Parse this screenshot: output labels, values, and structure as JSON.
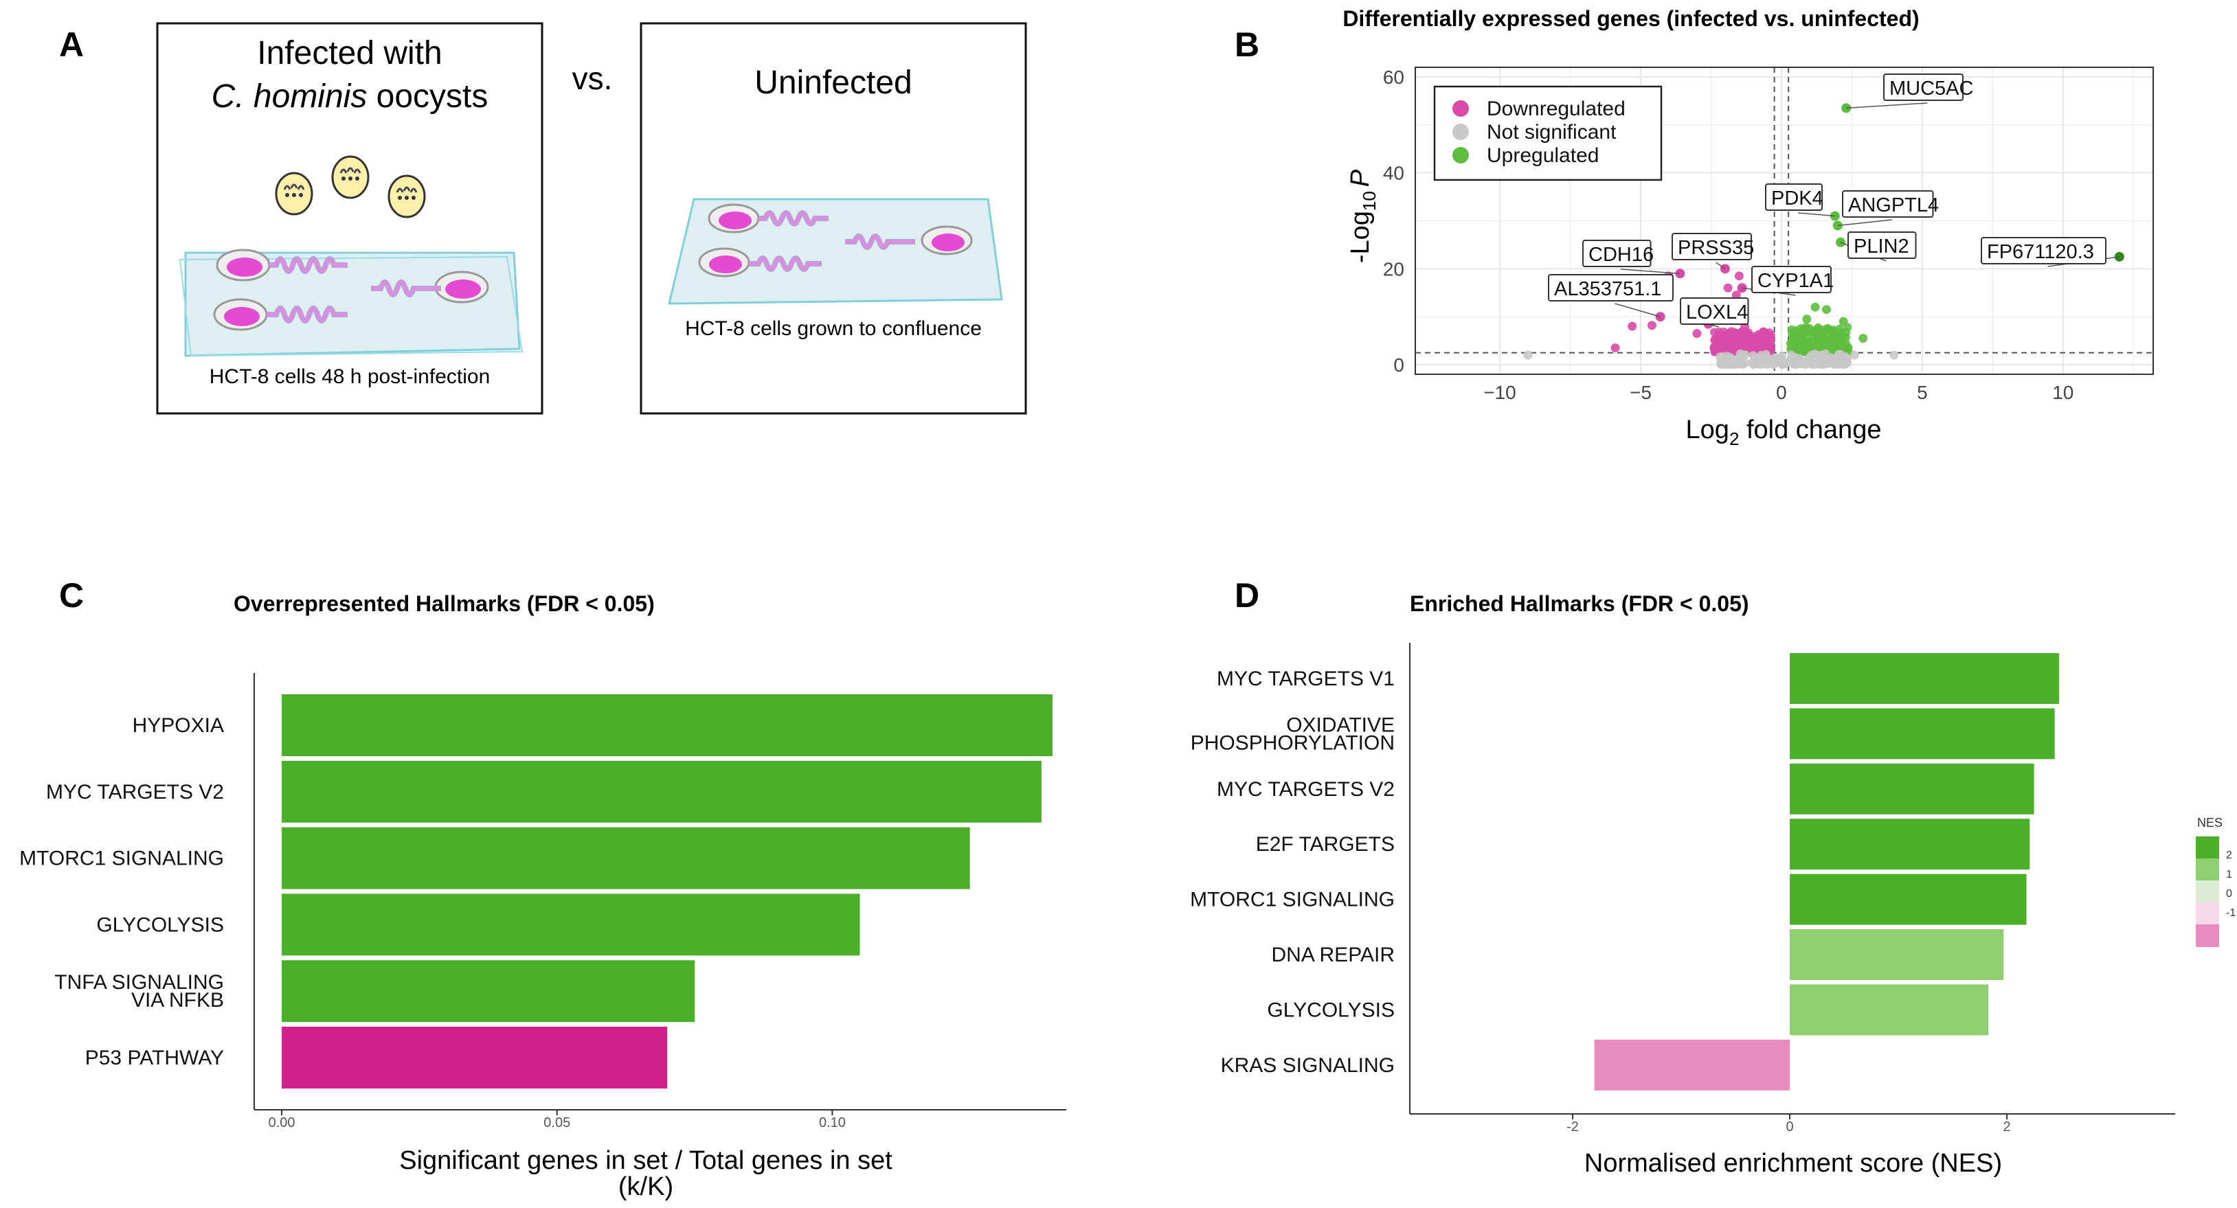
{
  "panels": {
    "a": {
      "letter": "A",
      "infected_title_line1": "Infected with",
      "infected_title_italic": "C. hominis",
      "infected_title_rest": " oocysts",
      "vs": "vs.",
      "uninfected_title": "Uninfected",
      "infected_caption": "HCT-8 cells 48 h post-infection",
      "uninfected_caption": "HCT-8 cells grown to confluence"
    },
    "b": {
      "letter": "B"
    },
    "c": {
      "letter": "C"
    },
    "d": {
      "letter": "D"
    }
  },
  "colors": {
    "green": "#4caf2a",
    "green_light": "#8fcf6f",
    "magenta": "#d0208c",
    "pink": "#e98bbf",
    "grey": "#c8c8c8",
    "dark_green": "#2e8b1e",
    "chip_pink": "#d94aa8",
    "chip_fill": "#f2a6dc"
  },
  "chart_data": [
    {
      "id": "volcano",
      "type": "scatter",
      "title": "Differentially expressed genes (infected vs. uninfected)",
      "xlabel": "Log2 fold change",
      "xlabel_main": "Log",
      "xlabel_sub": "2",
      "xlabel_rest": " fold change",
      "ylabel": "-Log10 P",
      "ylabel_main": "-Log",
      "ylabel_sub": "10",
      "ylabel_italic": "P",
      "xlim": [
        -13,
        13.2
      ],
      "ylim": [
        -2,
        62
      ],
      "xticks": [
        -10,
        -5,
        0,
        5,
        10
      ],
      "yticks": [
        0,
        20,
        40,
        60
      ],
      "grid": true,
      "legend_position": "top-left",
      "legend": [
        {
          "label": "Downregulated",
          "color": "#d94aa8"
        },
        {
          "label": "Not significant",
          "color": "#c8c8c8"
        },
        {
          "label": "Upregulated",
          "color": "#5ebd3e"
        }
      ],
      "thresholds": {
        "x": [
          -0.25,
          0.25
        ],
        "y": 2.5
      },
      "labeled_points": [
        {
          "gene": "MUC5AC",
          "x": 2.3,
          "y": 53.5,
          "group": "up"
        },
        {
          "gene": "PDK4",
          "x": 1.9,
          "y": 31.0,
          "group": "up"
        },
        {
          "gene": "ANGPTL4",
          "x": 2.0,
          "y": 29.0,
          "group": "up"
        },
        {
          "gene": "PLIN2",
          "x": 2.1,
          "y": 25.5,
          "group": "up"
        },
        {
          "gene": "FP671120.3",
          "x": 12.0,
          "y": 22.5,
          "group": "up"
        },
        {
          "gene": "CDH16",
          "x": -3.6,
          "y": 19.0,
          "group": "down"
        },
        {
          "gene": "PRSS35",
          "x": -2.0,
          "y": 20.0,
          "group": "down"
        },
        {
          "gene": "CYP1A1",
          "x": -1.4,
          "y": 16.0,
          "group": "down"
        },
        {
          "gene": "AL353751.1",
          "x": -4.3,
          "y": 10.0,
          "group": "down"
        },
        {
          "gene": "LOXL4",
          "x": -2.6,
          "y": 8.5,
          "group": "down"
        }
      ],
      "other_points": [
        {
          "x": -5.9,
          "y": 3.5,
          "group": "down"
        },
        {
          "x": -5.3,
          "y": 8.0,
          "group": "down"
        },
        {
          "x": -4.6,
          "y": 8.2,
          "group": "down"
        },
        {
          "x": -4.0,
          "y": 18.5,
          "group": "down"
        },
        {
          "x": -3.0,
          "y": 6.5,
          "group": "down"
        },
        {
          "x": -2.8,
          "y": 11.0,
          "group": "down"
        },
        {
          "x": -1.6,
          "y": 14.5,
          "group": "down"
        },
        {
          "x": -1.5,
          "y": 18.5,
          "group": "down"
        },
        {
          "x": -1.9,
          "y": 16.0,
          "group": "down"
        },
        {
          "x": -1.3,
          "y": 8.0,
          "group": "down"
        },
        {
          "x": 1.2,
          "y": 12.0,
          "group": "up"
        },
        {
          "x": 1.6,
          "y": 11.5,
          "group": "up"
        },
        {
          "x": 0.9,
          "y": 9.5,
          "group": "up"
        },
        {
          "x": 2.2,
          "y": 9.0,
          "group": "up"
        },
        {
          "x": 2.9,
          "y": 5.5,
          "group": "up"
        },
        {
          "x": 1.0,
          "y": 7.5,
          "group": "up"
        },
        {
          "x": -9.0,
          "y": 2.0,
          "group": "ns"
        },
        {
          "x": 4.0,
          "y": 2.0,
          "group": "ns"
        },
        {
          "x": 2.6,
          "y": 2.0,
          "group": "ns"
        }
      ],
      "clusters": [
        {
          "x0": -2.4,
          "x1": -0.3,
          "y0": 2.6,
          "y1": 7.0,
          "group": "down",
          "n": 260
        },
        {
          "x0": 0.3,
          "x1": 2.4,
          "y0": 2.6,
          "y1": 8.0,
          "group": "up",
          "n": 180
        },
        {
          "x0": -2.2,
          "x1": 2.4,
          "y0": 0.0,
          "y1": 2.4,
          "group": "ns",
          "n": 200
        }
      ]
    },
    {
      "id": "overrepresented",
      "type": "bar",
      "orientation": "horizontal",
      "title": "Overrepresented Hallmarks (FDR < 0.05)",
      "xlabel": "Significant genes in set / Total genes in set",
      "xlabel_line2": "(k/K)",
      "xlim": [
        -0.005,
        0.1425
      ],
      "xticks": [
        "0.00",
        "0.05",
        "0.10"
      ],
      "categories": [
        [
          "HYPOXIA"
        ],
        [
          "MYC TARGETS V2"
        ],
        [
          "MTORC1 SIGNALING"
        ],
        [
          "GLYCOLYSIS"
        ],
        [
          "TNFA SIGNALING",
          "VIA NFKB"
        ],
        [
          "P53 PATHWAY"
        ]
      ],
      "values": [
        0.14,
        0.138,
        0.125,
        0.105,
        0.075,
        0.07
      ],
      "bar_colors": [
        "green",
        "green",
        "green",
        "green",
        "green",
        "magenta"
      ]
    },
    {
      "id": "enriched",
      "type": "bar",
      "orientation": "horizontal",
      "title": "Enriched Hallmarks (FDR < 0.05)",
      "xlabel": "Normalised enrichment score (NES)",
      "xlim": [
        -3.5,
        3.55
      ],
      "xticks": [
        "-2",
        "0",
        "2"
      ],
      "xtick_values": [
        -2,
        0,
        2
      ],
      "categories": [
        [
          "MYC TARGETS V1"
        ],
        [
          "OXIDATIVE",
          "PHOSPHORYLATION"
        ],
        [
          "MYC TARGETS V2"
        ],
        [
          "E2F TARGETS"
        ],
        [
          "MTORC1 SIGNALING"
        ],
        [
          "DNA REPAIR"
        ],
        [
          "GLYCOLYSIS"
        ],
        [
          "KRAS SIGNALING"
        ]
      ],
      "values": [
        2.48,
        2.44,
        2.25,
        2.21,
        2.18,
        1.97,
        1.83,
        -1.8
      ],
      "legend": {
        "title": "NES",
        "ticks": [
          "2",
          "1",
          "0",
          "-1"
        ],
        "colors": [
          "#4caf2a",
          "#8fcf6f",
          "#dcecd4",
          "#f6d8e8",
          "#e98bbf"
        ]
      }
    }
  ]
}
